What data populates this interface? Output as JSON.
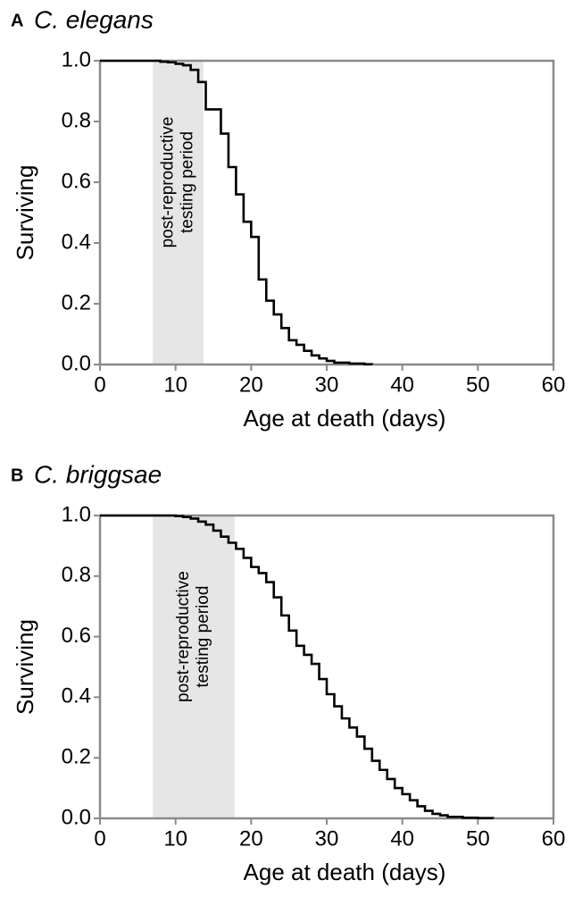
{
  "chart_data": [
    {
      "type": "step",
      "panel_label": "A",
      "title": "C. elegans",
      "title_color": "#000000",
      "xlabel": "Age at death (days)",
      "ylabel": "Surviving",
      "xlim": [
        0,
        60
      ],
      "ylim": [
        0,
        1
      ],
      "xticks": [
        0,
        10,
        20,
        30,
        40,
        50,
        60
      ],
      "yticks": [
        {
          "value": 0,
          "label": "0.0"
        },
        0.2,
        0.4,
        0.6,
        0.8,
        {
          "value": 1,
          "label": "1.0"
        }
      ],
      "shaded_region": {
        "range": [
          7,
          13.7
        ],
        "label": [
          "post-reproductive",
          "testing period"
        ]
      },
      "x": [
        0,
        8,
        9,
        10,
        11,
        12,
        13,
        14,
        16,
        17,
        18,
        19,
        20,
        21,
        22,
        23,
        24,
        25,
        26,
        27,
        28,
        29,
        30,
        31,
        33,
        35,
        36
      ],
      "series": [
        {
          "name": "C. elegans",
          "color": "#000000",
          "values": [
            1,
            0.997,
            0.995,
            0.99,
            0.985,
            0.97,
            0.93,
            0.84,
            0.76,
            0.65,
            0.56,
            0.47,
            0.42,
            0.28,
            0.21,
            0.165,
            0.12,
            0.08,
            0.065,
            0.045,
            0.03,
            0.02,
            0.012,
            0.006,
            0.003,
            0.001,
            0
          ]
        }
      ]
    },
    {
      "type": "step",
      "panel_label": "B",
      "title": "C. briggsae",
      "title_color": "#777777",
      "xlabel": "Age at death (days)",
      "ylabel": "Surviving",
      "xlim": [
        0,
        60
      ],
      "ylim": [
        0,
        1
      ],
      "xticks": [
        0,
        10,
        20,
        30,
        40,
        50,
        60
      ],
      "yticks": [
        {
          "value": 0,
          "label": "0.0"
        },
        0.2,
        0.4,
        0.6,
        0.8,
        {
          "value": 1,
          "label": "1.0"
        }
      ],
      "shaded_region": {
        "range": [
          7,
          17.8
        ],
        "label": [
          "post-reproductive",
          "testing period"
        ]
      },
      "x": [
        0,
        10,
        11,
        12,
        13,
        14,
        15,
        16,
        17,
        18,
        19,
        20,
        21,
        22,
        23,
        24,
        25,
        26,
        27,
        28,
        29,
        30,
        31,
        32,
        33,
        34,
        35,
        36,
        37,
        38,
        39,
        40,
        41,
        42,
        43,
        44,
        45,
        46,
        48,
        50,
        52
      ],
      "series": [
        {
          "name": "C. briggsae",
          "color": "#000000",
          "values": [
            1,
            0.998,
            0.995,
            0.99,
            0.98,
            0.97,
            0.95,
            0.93,
            0.91,
            0.89,
            0.86,
            0.83,
            0.81,
            0.78,
            0.73,
            0.67,
            0.62,
            0.57,
            0.54,
            0.51,
            0.46,
            0.41,
            0.37,
            0.33,
            0.3,
            0.27,
            0.23,
            0.19,
            0.16,
            0.13,
            0.1,
            0.08,
            0.06,
            0.04,
            0.025,
            0.015,
            0.01,
            0.005,
            0.002,
            0.001,
            0
          ]
        }
      ]
    }
  ]
}
